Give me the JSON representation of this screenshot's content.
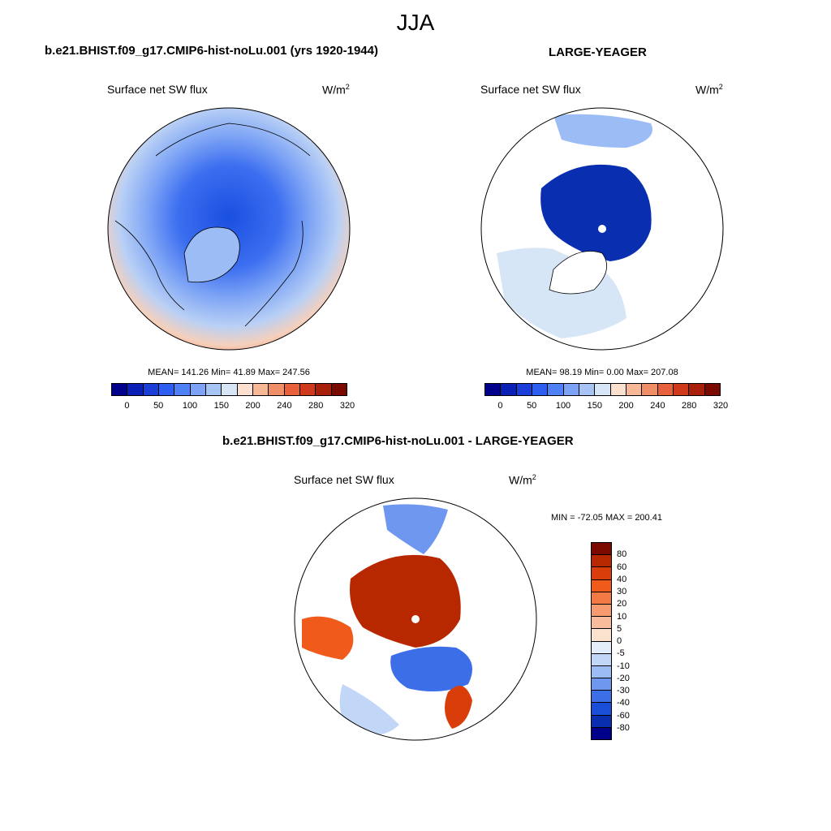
{
  "figure": {
    "season": "JJA",
    "units_base": "W/m",
    "units_exp": "2",
    "variable": "Surface net SW flux"
  },
  "panels": [
    {
      "title": "b.e21.BHIST.f09_g17.CMIP6-hist-noLu.001 (yrs 1920-1944)",
      "variable": "Surface net SW flux",
      "stats": "MEAN= 141.26  Min=  41.89  Max= 247.56",
      "mean": 141.26,
      "min": 41.89,
      "max": 247.56
    },
    {
      "title": "LARGE-YEAGER",
      "variable": "Surface net SW flux",
      "stats": "MEAN=  98.19  Min=   0.00  Max= 207.08",
      "mean": 98.19,
      "min": 0.0,
      "max": 207.08
    },
    {
      "title": "b.e21.BHIST.f09_g17.CMIP6-hist-noLu.001 - LARGE-YEAGER",
      "variable": "Surface net SW flux",
      "stats": "MIN = -72.05 MAX = 200.41",
      "min": -72.05,
      "max": 200.41
    }
  ],
  "colorbar_abs": {
    "colors": [
      "#00008b",
      "#0a1fb5",
      "#1a3fd8",
      "#2e5ef0",
      "#5080f5",
      "#7ca3f7",
      "#a8c4f5",
      "#d6e6f7",
      "#fbe0d0",
      "#f7b898",
      "#f08e68",
      "#e8603c",
      "#d03a1c",
      "#a8200a",
      "#7a0a00"
    ],
    "labels": [
      "0",
      "50",
      "100",
      "150",
      "200",
      "240",
      "280",
      "320"
    ]
  },
  "colorbar_diff": {
    "colors": [
      "#7a0a00",
      "#b82800",
      "#d93e0a",
      "#f05a1a",
      "#f47a45",
      "#f79a70",
      "#f8bc9c",
      "#fbe2cf",
      "#e4edfa",
      "#c2d6f7",
      "#9cbcf5",
      "#6e98f0",
      "#3c6ee8",
      "#1a4ed8",
      "#0a2eb0",
      "#00008b"
    ],
    "labels": [
      "80",
      "60",
      "40",
      "30",
      "20",
      "10",
      "5",
      "0",
      "-5",
      "-10",
      "-20",
      "-30",
      "-40",
      "-60",
      "-80"
    ]
  }
}
